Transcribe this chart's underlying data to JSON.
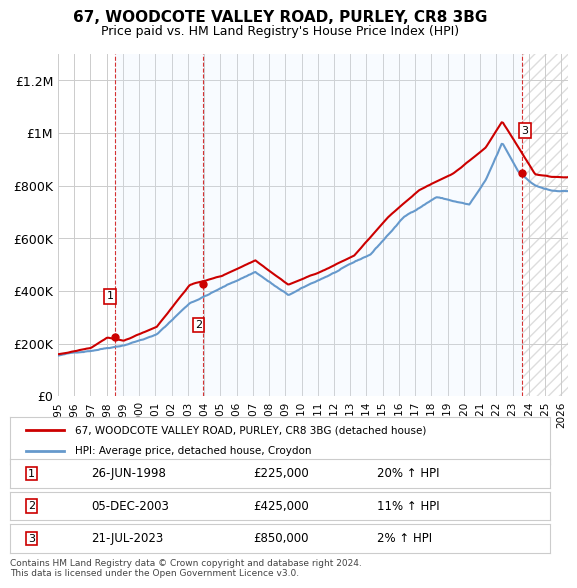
{
  "title": "67, WOODCOTE VALLEY ROAD, PURLEY, CR8 3BG",
  "subtitle": "Price paid vs. HM Land Registry's House Price Index (HPI)",
  "xlabel": "",
  "ylabel": "",
  "ylim": [
    0,
    1300000
  ],
  "yticks": [
    0,
    200000,
    400000,
    600000,
    800000,
    1000000,
    1200000
  ],
  "ytick_labels": [
    "£0",
    "£200K",
    "£400K",
    "£600K",
    "£800K",
    "£1M",
    "£1.2M"
  ],
  "x_start_year": 1995,
  "x_end_year": 2026,
  "sale_dates": [
    "1998-06-26",
    "2003-12-05",
    "2023-07-21"
  ],
  "sale_prices": [
    225000,
    425000,
    850000
  ],
  "sale_labels": [
    "1",
    "2",
    "3"
  ],
  "hpi_color": "#6699cc",
  "price_color": "#cc0000",
  "sale_dot_color": "#cc0000",
  "legend_line1": "67, WOODCOTE VALLEY ROAD, PURLEY, CR8 3BG (detached house)",
  "legend_line2": "HPI: Average price, detached house, Croydon",
  "table_rows": [
    {
      "label": "1",
      "date": "26-JUN-1998",
      "price": "£225,000",
      "hpi": "20% ↑ HPI"
    },
    {
      "label": "2",
      "date": "05-DEC-2003",
      "price": "£425,000",
      "hpi": "11% ↑ HPI"
    },
    {
      "label": "3",
      "date": "21-JUL-2023",
      "price": "£850,000",
      "hpi": "2% ↑ HPI"
    }
  ],
  "footer": "Contains HM Land Registry data © Crown copyright and database right 2024.\nThis data is licensed under the Open Government Licence v3.0.",
  "background_color": "#ffffff",
  "plot_bg_color": "#ffffff",
  "grid_color": "#cccccc",
  "shaded_regions_color": "#ddeeff",
  "hatch_color": "#cccccc"
}
